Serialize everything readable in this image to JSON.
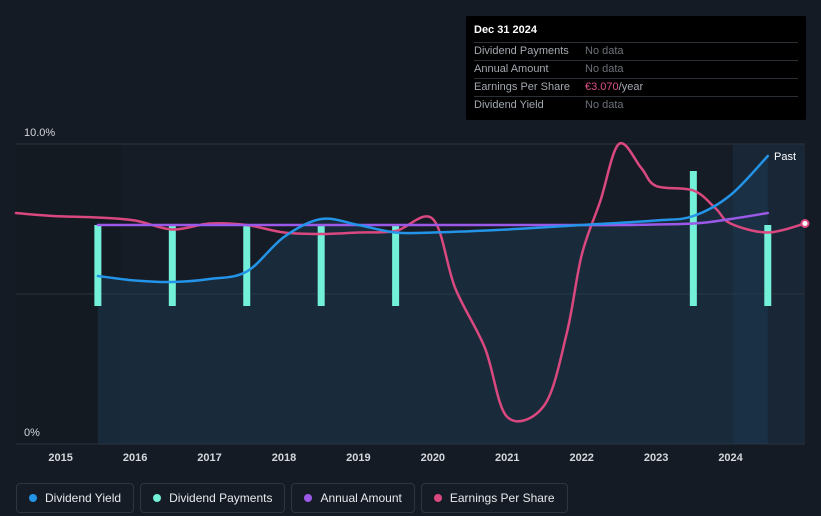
{
  "tooltip": {
    "date": "Dec 31 2024",
    "rows": [
      {
        "label": "Dividend Payments",
        "value": "No data",
        "unit": ""
      },
      {
        "label": "Annual Amount",
        "value": "No data",
        "unit": ""
      },
      {
        "label": "Earnings Per Share",
        "value": "€3.070",
        "unit": "/year"
      },
      {
        "label": "Dividend Yield",
        "value": "No data",
        "unit": ""
      }
    ]
  },
  "past_label": "Past",
  "legend": [
    {
      "label": "Dividend Yield",
      "color": "#2394e8"
    },
    {
      "label": "Dividend Payments",
      "color": "#72f0d8"
    },
    {
      "label": "Annual Amount",
      "color": "#9b59e8"
    },
    {
      "label": "Earnings Per Share",
      "color": "#d9487f"
    }
  ],
  "chart_data": {
    "type": "line",
    "y_axis": {
      "tick_labels": [
        "10.0%",
        "0%"
      ],
      "ylim": [
        0,
        10
      ]
    },
    "x_axis": {
      "tick_labels": [
        "2015",
        "2016",
        "2017",
        "2018",
        "2019",
        "2020",
        "2021",
        "2022",
        "2023",
        "2024"
      ],
      "xlim": [
        2014.4,
        2025.0
      ]
    },
    "grid": true,
    "series": [
      {
        "name": "Dividend Yield",
        "color": "#2394e8",
        "points": [
          [
            2015.5,
            5.6
          ],
          [
            2016.0,
            5.45
          ],
          [
            2016.5,
            5.4
          ],
          [
            2017.0,
            5.5
          ],
          [
            2017.5,
            5.75
          ],
          [
            2018.0,
            6.9
          ],
          [
            2018.5,
            7.5
          ],
          [
            2019.0,
            7.3
          ],
          [
            2019.5,
            7.05
          ],
          [
            2020.0,
            7.05
          ],
          [
            2021.0,
            7.15
          ],
          [
            2022.0,
            7.3
          ],
          [
            2023.0,
            7.45
          ],
          [
            2023.5,
            7.6
          ],
          [
            2024.0,
            8.3
          ],
          [
            2024.5,
            9.6
          ]
        ]
      },
      {
        "name": "Dividend Payments",
        "color": "#72f0d8",
        "bars": [
          [
            2015.5,
            7.3
          ],
          [
            2016.5,
            7.3
          ],
          [
            2017.5,
            7.3
          ],
          [
            2018.5,
            7.3
          ],
          [
            2019.5,
            7.3
          ],
          [
            2023.5,
            9.1
          ],
          [
            2024.5,
            7.3
          ]
        ],
        "bar_bottom": 4.6
      },
      {
        "name": "Annual Amount",
        "color": "#9b59e8",
        "points": [
          [
            2015.5,
            7.3
          ],
          [
            2016.5,
            7.3
          ],
          [
            2017.5,
            7.3
          ],
          [
            2018.5,
            7.3
          ],
          [
            2019.5,
            7.3
          ],
          [
            2020.5,
            7.3
          ],
          [
            2021.5,
            7.3
          ],
          [
            2022.5,
            7.3
          ],
          [
            2023.5,
            7.35
          ],
          [
            2024.0,
            7.5
          ],
          [
            2024.5,
            7.7
          ]
        ]
      },
      {
        "name": "Earnings Per Share",
        "color": "#d9487f",
        "points": [
          [
            2014.4,
            7.7
          ],
          [
            2014.9,
            7.6
          ],
          [
            2015.5,
            7.55
          ],
          [
            2016.0,
            7.45
          ],
          [
            2016.5,
            7.15
          ],
          [
            2017.0,
            7.35
          ],
          [
            2017.5,
            7.3
          ],
          [
            2018.0,
            7.05
          ],
          [
            2018.5,
            7.0
          ],
          [
            2019.0,
            7.05
          ],
          [
            2019.5,
            7.1
          ],
          [
            2020.0,
            7.5
          ],
          [
            2020.3,
            5.2
          ],
          [
            2020.7,
            3.2
          ],
          [
            2021.0,
            0.9
          ],
          [
            2021.5,
            1.3
          ],
          [
            2021.8,
            3.7
          ],
          [
            2022.0,
            6.3
          ],
          [
            2022.25,
            8.1
          ],
          [
            2022.5,
            10.0
          ],
          [
            2022.8,
            9.2
          ],
          [
            2023.0,
            8.6
          ],
          [
            2023.5,
            8.45
          ],
          [
            2023.8,
            7.85
          ],
          [
            2024.0,
            7.35
          ],
          [
            2024.5,
            7.05
          ],
          [
            2025.0,
            7.35
          ]
        ]
      }
    ]
  }
}
